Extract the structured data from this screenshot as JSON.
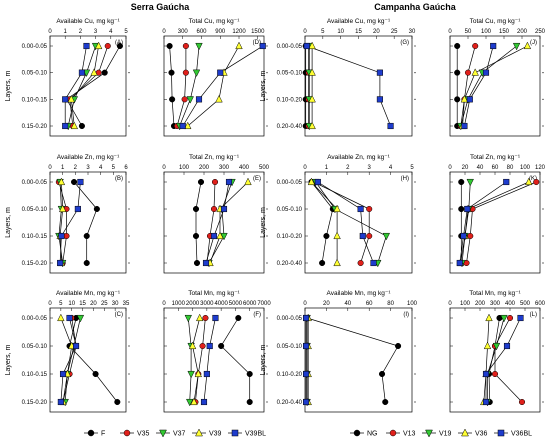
{
  "header": {
    "serra": "Serra Gaúcha",
    "campanha": "Campanha Gaúcha"
  },
  "ylabel": "Layers, m",
  "legend_serra": [
    {
      "name": "F",
      "color": "#000000",
      "marker": "circle"
    },
    {
      "name": "V35",
      "color": "#e0201b",
      "marker": "circle"
    },
    {
      "name": "V37",
      "color": "#32c832",
      "marker": "triangle-down"
    },
    {
      "name": "V39",
      "color": "#ffff33",
      "marker": "triangle-up"
    },
    {
      "name": "V39BL",
      "color": "#1e3ccd",
      "marker": "square"
    }
  ],
  "legend_campanha": [
    {
      "name": "NG",
      "color": "#000000",
      "marker": "circle"
    },
    {
      "name": "V13",
      "color": "#e0201b",
      "marker": "circle"
    },
    {
      "name": "V19",
      "color": "#32c832",
      "marker": "triangle-down"
    },
    {
      "name": "V36",
      "color": "#ffff33",
      "marker": "triangle-up"
    },
    {
      "name": "V36BL",
      "color": "#1e3ccd",
      "marker": "square"
    }
  ],
  "chart_data": [
    {
      "id": "A",
      "type": "line",
      "title": "Available Cu, mg kg⁻¹",
      "region": "Serra Gaúcha",
      "xlim": [
        0,
        5
      ],
      "xticks": [
        0,
        1,
        2,
        3,
        4,
        5
      ],
      "categories": [
        "0.00-0.05",
        "0.05-0.10",
        "0.10-0.15",
        "0.15-0.20"
      ],
      "series": [
        {
          "name": "F",
          "values": [
            4.6,
            3.6,
            1.1,
            2.1
          ]
        },
        {
          "name": "V35",
          "values": [
            3.8,
            3.2,
            1.3,
            1.5
          ]
        },
        {
          "name": "V37",
          "values": [
            3.0,
            2.4,
            1.6,
            1.2
          ]
        },
        {
          "name": "V39",
          "values": [
            3.2,
            2.9,
            1.4,
            1.6
          ]
        },
        {
          "name": "V39BL",
          "values": [
            2.4,
            2.1,
            1.0,
            1.0
          ]
        }
      ]
    },
    {
      "id": "D",
      "type": "line",
      "title": "Total Cu, mg kg⁻¹",
      "region": "Serra Gaúcha",
      "xlim": [
        0,
        1600
      ],
      "xticks": [
        0,
        300,
        600,
        900,
        1200,
        1500
      ],
      "categories": [
        "0.00-0.05",
        "0.05-0.10",
        "0.10-0.15",
        "0.15-0.20"
      ],
      "series": [
        {
          "name": "F",
          "values": [
            90,
            120,
            130,
            160
          ]
        },
        {
          "name": "V35",
          "values": [
            350,
            350,
            330,
            210
          ]
        },
        {
          "name": "V37",
          "values": [
            560,
            520,
            420,
            250
          ]
        },
        {
          "name": "V39",
          "values": [
            1200,
            960,
            880,
            380
          ]
        },
        {
          "name": "V39BL",
          "values": [
            1580,
            900,
            560,
            300
          ]
        }
      ]
    },
    {
      "id": "B",
      "type": "line",
      "title": "Available Zn, mg kg⁻¹",
      "region": "Serra Gaúcha",
      "xlim": [
        0,
        6
      ],
      "xticks": [
        0,
        1,
        2,
        3,
        4,
        5,
        6
      ],
      "categories": [
        "0.00-0.05",
        "0.05-0.10",
        "0.10-0.15",
        "0.15-0.20"
      ],
      "series": [
        {
          "name": "F",
          "values": [
            1.9,
            3.7,
            2.9,
            2.9
          ]
        },
        {
          "name": "V35",
          "values": [
            0.7,
            1.3,
            1.3,
            1.0
          ]
        },
        {
          "name": "V37",
          "values": [
            0.8,
            0.9,
            0.7,
            1.0
          ]
        },
        {
          "name": "V39",
          "values": [
            0.9,
            1.0,
            0.8,
            0.9
          ]
        },
        {
          "name": "V39BL",
          "values": [
            2.4,
            2.2,
            0.9,
            0.8
          ]
        }
      ]
    },
    {
      "id": "E",
      "type": "line",
      "title": "Total Zn, mg kg⁻¹",
      "region": "Serra Gaúcha",
      "xlim": [
        0,
        500
      ],
      "xticks": [
        0,
        100,
        200,
        300,
        400,
        500
      ],
      "categories": [
        "0.00-0.05",
        "0.05-0.10",
        "0.10-0.15",
        "0.15-0.20"
      ],
      "series": [
        {
          "name": "F",
          "values": [
            185,
            160,
            160,
            165
          ]
        },
        {
          "name": "V35",
          "values": [
            255,
            250,
            230,
            215
          ]
        },
        {
          "name": "V37",
          "values": [
            340,
            290,
            300,
            225
          ]
        },
        {
          "name": "V39",
          "values": [
            420,
            280,
            280,
            230
          ]
        },
        {
          "name": "V39BL",
          "values": [
            325,
            300,
            250,
            210
          ]
        }
      ]
    },
    {
      "id": "C",
      "type": "line",
      "title": "Available Mn, mg kg⁻¹",
      "region": "Serra Gaúcha",
      "xlim": [
        0,
        35
      ],
      "xticks": [
        0,
        5,
        10,
        15,
        20,
        25,
        30,
        35
      ],
      "categories": [
        "0.00-0.05",
        "0.05-0.10",
        "0.10-0.15",
        "0.15-0.20"
      ],
      "series": [
        {
          "name": "F",
          "values": [
            12,
            9,
            21,
            31
          ]
        },
        {
          "name": "V35",
          "values": [
            10,
            12,
            9,
            6
          ]
        },
        {
          "name": "V37",
          "values": [
            14,
            11,
            8,
            7
          ]
        },
        {
          "name": "V39",
          "values": [
            5,
            10,
            8,
            6
          ]
        },
        {
          "name": "V39BL",
          "values": [
            9,
            12,
            6,
            5
          ]
        }
      ]
    },
    {
      "id": "F",
      "type": "line",
      "title": "Total Mn, mg kg⁻¹",
      "region": "Serra Gaúcha",
      "xlim": [
        0,
        7000
      ],
      "xticks": [
        0,
        1000,
        2000,
        3000,
        4000,
        5000,
        6000,
        7000
      ],
      "categories": [
        "0.00-0.05",
        "0.05-0.10",
        "0.10-0.15",
        "0.15-0.20"
      ],
      "series": [
        {
          "name": "F",
          "values": [
            5200,
            4000,
            6000,
            6000
          ]
        },
        {
          "name": "V35",
          "values": [
            2900,
            2700,
            2400,
            2200
          ]
        },
        {
          "name": "V37",
          "values": [
            1700,
            1900,
            1900,
            1800
          ]
        },
        {
          "name": "V39",
          "values": [
            2500,
            2000,
            2400,
            2100
          ]
        },
        {
          "name": "V39BL",
          "values": [
            3600,
            3200,
            3000,
            2800
          ]
        }
      ]
    },
    {
      "id": "G",
      "type": "line",
      "title": "Available Cu, mg kg⁻¹",
      "region": "Campanha Gaúcha",
      "xlim": [
        0,
        30
      ],
      "xticks": [
        0,
        5,
        10,
        15,
        20,
        25,
        30
      ],
      "categories": [
        "0.00-0.05",
        "0.05-0.10",
        "0.10-0.20",
        "0.20-0.40"
      ],
      "series": [
        {
          "name": "NG",
          "values": [
            0.2,
            0.2,
            0.2,
            0.2
          ]
        },
        {
          "name": "V13",
          "values": [
            1.0,
            1.0,
            1.0,
            1.0
          ]
        },
        {
          "name": "V19",
          "values": [
            1.2,
            1.2,
            1.2,
            1.2
          ]
        },
        {
          "name": "V36",
          "values": [
            2.0,
            2.0,
            2.0,
            2.0
          ]
        },
        {
          "name": "V36BL",
          "values": [
            0.5,
            21,
            21,
            24
          ]
        }
      ]
    },
    {
      "id": "J",
      "type": "line",
      "title": "Total Cu, mg kg⁻¹",
      "region": "Campanha Gaúcha",
      "xlim": [
        0,
        250
      ],
      "xticks": [
        0,
        50,
        100,
        150,
        200,
        250
      ],
      "categories": [
        "0.00-0.05",
        "0.05-0.10",
        "0.10-0.20",
        "0.20-0.40"
      ],
      "series": [
        {
          "name": "NG",
          "values": [
            20,
            20,
            20,
            20
          ]
        },
        {
          "name": "V13",
          "values": [
            70,
            50,
            40,
            30
          ]
        },
        {
          "name": "V19",
          "values": [
            185,
            90,
            50,
            30
          ]
        },
        {
          "name": "V36",
          "values": [
            215,
            70,
            40,
            35
          ]
        },
        {
          "name": "V36BL",
          "values": [
            120,
            100,
            55,
            40
          ]
        }
      ]
    },
    {
      "id": "H",
      "type": "line",
      "title": "Available Zn, mg kg⁻¹",
      "region": "Campanha Gaúcha",
      "xlim": [
        0,
        5
      ],
      "xticks": [
        0,
        1,
        2,
        3,
        4,
        5
      ],
      "categories": [
        "0.00-0.05",
        "0.05-0.10",
        "0.10-0.20",
        "0.20-0.40"
      ],
      "series": [
        {
          "name": "NG",
          "values": [
            0.3,
            1.3,
            1.0,
            0.8
          ]
        },
        {
          "name": "V13",
          "values": [
            0.4,
            3.0,
            3.0,
            2.6
          ]
        },
        {
          "name": "V19",
          "values": [
            0.5,
            1.4,
            3.8,
            3.4
          ]
        },
        {
          "name": "V36",
          "values": [
            0.3,
            1.5,
            1.5,
            1.5
          ]
        },
        {
          "name": "V36BL",
          "values": [
            0.6,
            2.6,
            2.7,
            3.2
          ]
        }
      ]
    },
    {
      "id": "K",
      "type": "line",
      "title": "Total Zn, mg kg⁻¹",
      "region": "Campanha Gaúcha",
      "xlim": [
        0,
        120
      ],
      "xticks": [
        0,
        20,
        40,
        60,
        80,
        100,
        120
      ],
      "categories": [
        "0.00-0.05",
        "0.05-0.10",
        "0.10-0.20",
        "0.20-0.40"
      ],
      "series": [
        {
          "name": "NG",
          "values": [
            15,
            15,
            15,
            15
          ]
        },
        {
          "name": "V13",
          "values": [
            115,
            30,
            27,
            22
          ]
        },
        {
          "name": "V19",
          "values": [
            27,
            25,
            20,
            16
          ]
        },
        {
          "name": "V36",
          "values": [
            105,
            24,
            20,
            14
          ]
        },
        {
          "name": "V36BL",
          "values": [
            75,
            23,
            18,
            13
          ]
        }
      ]
    },
    {
      "id": "I",
      "type": "line",
      "title": "Available Mn, mg kg⁻¹",
      "region": "Campanha Gaúcha",
      "xlim": [
        0,
        100
      ],
      "xticks": [
        0,
        20,
        40,
        60,
        80,
        100
      ],
      "categories": [
        "0.00-0.05",
        "0.05-0.10",
        "0.10-0.20",
        "0.20-0.40"
      ],
      "series": [
        {
          "name": "NG",
          "values": [
            2,
            87,
            72,
            75
          ]
        },
        {
          "name": "V13",
          "values": [
            1,
            1,
            1,
            1
          ]
        },
        {
          "name": "V19",
          "values": [
            2,
            2,
            2,
            2
          ]
        },
        {
          "name": "V36",
          "values": [
            3,
            3,
            3,
            3
          ]
        },
        {
          "name": "V36BL",
          "values": [
            1,
            1,
            1,
            1
          ]
        }
      ]
    },
    {
      "id": "L",
      "type": "line",
      "title": "Total Mn, mg kg⁻¹",
      "region": "Campanha Gaúcha",
      "xlim": [
        0,
        600
      ],
      "xticks": [
        0,
        100,
        200,
        300,
        400,
        500,
        600
      ],
      "categories": [
        "0.00-0.05",
        "0.05-0.10",
        "0.10-0.20",
        "0.20-0.40"
      ],
      "series": [
        {
          "name": "NG",
          "values": [
            330,
            300,
            260,
            265
          ]
        },
        {
          "name": "V13",
          "values": [
            400,
            300,
            300,
            480
          ]
        },
        {
          "name": "V19",
          "values": [
            360,
            310,
            250,
            250
          ]
        },
        {
          "name": "V36",
          "values": [
            260,
            250,
            240,
            225
          ]
        },
        {
          "name": "V36BL",
          "values": [
            470,
            380,
            240,
            240
          ]
        }
      ]
    }
  ]
}
